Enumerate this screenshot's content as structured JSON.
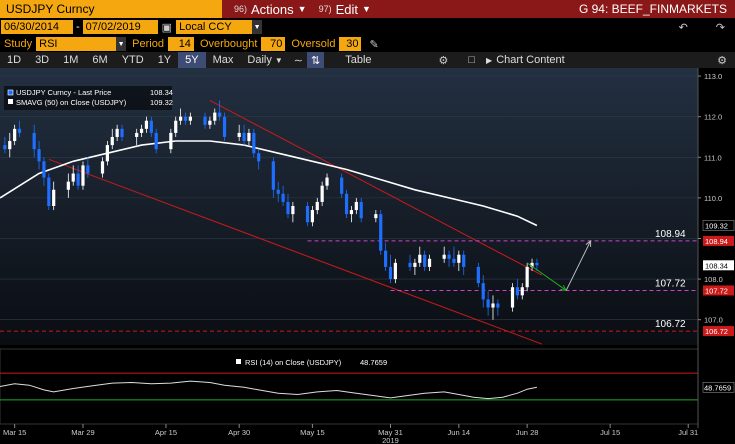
{
  "header": {
    "ticker": "USDJPY Curncy",
    "actions_num": "96)",
    "actions_label": "Actions",
    "edit_num": "97)",
    "edit_label": "Edit",
    "window_title": "G 94: BEEF_FINMARKETS"
  },
  "controls": {
    "start_date": "06/30/2014",
    "end_date": "07/02/2019",
    "currency": "Local CCY",
    "study_label": "Study",
    "study_value": "RSI",
    "period_label": "Period",
    "period_value": "14",
    "overbought_label": "Overbought",
    "overbought_value": "70",
    "oversold_label": "Oversold",
    "oversold_value": "30"
  },
  "toolbar": {
    "ranges": [
      "1D",
      "3D",
      "1M",
      "6M",
      "YTD",
      "1Y",
      "5Y",
      "Max"
    ],
    "active_range": "5Y",
    "interval": "Daily",
    "table_label": "Table",
    "chart_content_label": "Chart Content"
  },
  "colors": {
    "up_candle": "#ffffff",
    "down_candle": "#1e6fff",
    "sma_line": "#ffffff",
    "channel": "#cc1a1a",
    "level_line": "#cc44cc",
    "last_price_tag": "#ffffff",
    "level_tag": "#cc1a1a",
    "arrow_green": "#22aa22",
    "arrow_grey": "#bbbbbb",
    "rsi_line": "#dddddd",
    "rsi_overbought": "#cc1a1a",
    "rsi_oversold": "#22aa22"
  },
  "chart_data": {
    "type": "candlestick",
    "legend": [
      {
        "name": "USDJPY Curncy - Last Price",
        "value": "108.34",
        "color": "#1e6fff"
      },
      {
        "name": "SMAVG (50)  on Close (USDJPY)",
        "value": "109.32",
        "color": "#ffffff"
      }
    ],
    "ylim": [
      106.5,
      113.1
    ],
    "y_ticks": [
      107.0,
      108.0,
      109.0,
      110.0,
      111.0,
      112.0,
      113.0
    ],
    "x_tick_labels": [
      "Mar 15",
      "Mar 29",
      "Apr 15",
      "Apr 30",
      "May 15",
      "May 31",
      "Jun 14",
      "Jun 28",
      "Jul 15",
      "Jul 31"
    ],
    "x_tick_days": [
      0,
      14,
      31,
      46,
      61,
      77,
      91,
      105,
      122,
      138
    ],
    "x_sub_label": "2019",
    "candles": [
      [
        -2,
        111.3,
        111.5,
        111.1,
        111.2
      ],
      [
        -1,
        111.2,
        111.6,
        111.0,
        111.4
      ],
      [
        0,
        111.4,
        111.8,
        111.3,
        111.7
      ],
      [
        1,
        111.7,
        111.9,
        111.5,
        111.6
      ],
      [
        4,
        111.6,
        111.8,
        111.0,
        111.2
      ],
      [
        5,
        111.2,
        111.4,
        110.7,
        110.9
      ],
      [
        6,
        110.9,
        111.0,
        110.3,
        110.5
      ],
      [
        7,
        110.5,
        110.6,
        109.7,
        109.8
      ],
      [
        8,
        109.8,
        110.4,
        109.7,
        110.2
      ],
      [
        11,
        110.2,
        110.6,
        110.0,
        110.4
      ],
      [
        12,
        110.4,
        110.8,
        110.3,
        110.6
      ],
      [
        13,
        110.6,
        110.8,
        110.2,
        110.3
      ],
      [
        14,
        110.3,
        110.9,
        110.2,
        110.8
      ],
      [
        15,
        110.8,
        111.0,
        110.5,
        110.6
      ],
      [
        18,
        110.6,
        111.0,
        110.5,
        110.9
      ],
      [
        19,
        110.9,
        111.4,
        110.8,
        111.3
      ],
      [
        20,
        111.3,
        111.7,
        111.2,
        111.5
      ],
      [
        21,
        111.5,
        111.8,
        111.4,
        111.7
      ],
      [
        22,
        111.7,
        111.8,
        111.4,
        111.5
      ],
      [
        25,
        111.5,
        111.7,
        111.3,
        111.6
      ],
      [
        26,
        111.6,
        111.8,
        111.5,
        111.7
      ],
      [
        27,
        111.7,
        112.0,
        111.6,
        111.9
      ],
      [
        28,
        111.9,
        112.0,
        111.5,
        111.6
      ],
      [
        29,
        111.6,
        111.7,
        111.1,
        111.2
      ],
      [
        32,
        111.2,
        111.7,
        111.1,
        111.6
      ],
      [
        33,
        111.6,
        112.0,
        111.5,
        111.9
      ],
      [
        34,
        111.9,
        112.2,
        111.8,
        112.0
      ],
      [
        35,
        112.0,
        112.1,
        111.8,
        111.9
      ],
      [
        36,
        111.9,
        112.1,
        111.8,
        112.0
      ],
      [
        39,
        112.0,
        112.1,
        111.7,
        111.8
      ],
      [
        40,
        111.8,
        112.0,
        111.7,
        111.9
      ],
      [
        41,
        111.9,
        112.2,
        111.8,
        112.1
      ],
      [
        42,
        112.1,
        112.4,
        111.9,
        112.0
      ],
      [
        43,
        112.0,
        112.1,
        111.4,
        111.5
      ],
      [
        46,
        111.5,
        111.8,
        111.4,
        111.6
      ],
      [
        47,
        111.6,
        111.8,
        111.3,
        111.4
      ],
      [
        48,
        111.4,
        111.7,
        111.3,
        111.6
      ],
      [
        49,
        111.6,
        111.7,
        111.0,
        111.1
      ],
      [
        50,
        111.1,
        111.2,
        110.7,
        110.9
      ],
      [
        53,
        110.9,
        111.0,
        110.0,
        110.2
      ],
      [
        54,
        110.2,
        110.4,
        109.9,
        110.1
      ],
      [
        55,
        110.1,
        110.3,
        109.8,
        109.9
      ],
      [
        56,
        109.9,
        110.1,
        109.5,
        109.6
      ],
      [
        57,
        109.6,
        109.9,
        109.4,
        109.8
      ],
      [
        60,
        109.8,
        109.9,
        109.3,
        109.4
      ],
      [
        61,
        109.4,
        109.8,
        109.3,
        109.7
      ],
      [
        62,
        109.7,
        110.0,
        109.6,
        109.9
      ],
      [
        63,
        109.9,
        110.4,
        109.8,
        110.3
      ],
      [
        64,
        110.3,
        110.6,
        110.2,
        110.5
      ],
      [
        67,
        110.5,
        110.6,
        110.0,
        110.1
      ],
      [
        68,
        110.1,
        110.2,
        109.5,
        109.6
      ],
      [
        69,
        109.6,
        109.8,
        109.4,
        109.7
      ],
      [
        70,
        109.7,
        110.0,
        109.6,
        109.9
      ],
      [
        71,
        109.9,
        110.0,
        109.4,
        109.5
      ],
      [
        74,
        109.5,
        109.7,
        109.4,
        109.6
      ],
      [
        75,
        109.6,
        109.7,
        108.6,
        108.7
      ],
      [
        76,
        108.7,
        108.9,
        108.2,
        108.3
      ],
      [
        77,
        108.3,
        108.6,
        107.9,
        108.0
      ],
      [
        78,
        108.0,
        108.5,
        107.9,
        108.4
      ],
      [
        81,
        108.4,
        108.6,
        108.2,
        108.3
      ],
      [
        82,
        108.3,
        108.5,
        108.1,
        108.4
      ],
      [
        83,
        108.4,
        108.8,
        108.3,
        108.6
      ],
      [
        84,
        108.6,
        108.7,
        108.2,
        108.3
      ],
      [
        85,
        108.3,
        108.6,
        108.2,
        108.5
      ],
      [
        88,
        108.5,
        108.8,
        108.4,
        108.6
      ],
      [
        89,
        108.6,
        108.7,
        108.3,
        108.5
      ],
      [
        90,
        108.5,
        108.8,
        108.3,
        108.4
      ],
      [
        91,
        108.4,
        108.7,
        108.2,
        108.6
      ],
      [
        92,
        108.6,
        108.7,
        108.1,
        108.3
      ],
      [
        95,
        108.3,
        108.4,
        107.8,
        107.9
      ],
      [
        96,
        107.9,
        108.1,
        107.3,
        107.5
      ],
      [
        97,
        107.5,
        107.7,
        107.1,
        107.3
      ],
      [
        98,
        107.3,
        107.6,
        107.0,
        107.4
      ],
      [
        99,
        107.4,
        107.5,
        107.1,
        107.3
      ],
      [
        102,
        107.3,
        107.9,
        107.2,
        107.8
      ],
      [
        103,
        107.8,
        108.0,
        107.5,
        107.6
      ],
      [
        104,
        107.6,
        107.9,
        107.5,
        107.8
      ],
      [
        105,
        107.8,
        108.4,
        107.7,
        108.3
      ],
      [
        106,
        108.3,
        108.5,
        108.2,
        108.4
      ],
      [
        107,
        108.4,
        108.5,
        108.2,
        108.34
      ]
    ],
    "sma_50": [
      [
        -3,
        110.0
      ],
      [
        5,
        110.6
      ],
      [
        12,
        110.9
      ],
      [
        19,
        111.1
      ],
      [
        26,
        111.3
      ],
      [
        33,
        111.4
      ],
      [
        40,
        111.4
      ],
      [
        47,
        111.3
      ],
      [
        54,
        111.1
      ],
      [
        61,
        110.9
      ],
      [
        68,
        110.7
      ],
      [
        75,
        110.45
      ],
      [
        82,
        110.2
      ],
      [
        89,
        110.0
      ],
      [
        96,
        109.8
      ],
      [
        103,
        109.55
      ],
      [
        107,
        109.32
      ]
    ],
    "channel": {
      "upper": [
        [
          40,
          112.4
        ],
        [
          108,
          108.1
        ]
      ],
      "lower": [
        [
          7,
          110.95
        ],
        [
          108,
          106.4
        ]
      ]
    },
    "levels": [
      {
        "value": 108.94,
        "label": "108.94",
        "from_day": 60
      },
      {
        "value": 107.72,
        "label": "107.72",
        "from_day": 77
      },
      {
        "value": 106.72,
        "label": "106.72",
        "from_day": -3
      }
    ],
    "right_axis_tags": [
      {
        "value": 109.32,
        "label": "109.32",
        "style": "sma"
      },
      {
        "value": 108.94,
        "label": "108.94",
        "style": "level"
      },
      {
        "value": 108.34,
        "label": "108.34",
        "style": "last"
      },
      {
        "value": 107.72,
        "label": "107.72",
        "style": "level"
      },
      {
        "value": 106.72,
        "label": "106.72",
        "style": "level"
      }
    ],
    "arrows": [
      {
        "from": [
          105,
          108.4
        ],
        "to": [
          113,
          107.72
        ],
        "color": "green"
      },
      {
        "from": [
          113,
          107.72
        ],
        "to": [
          118,
          108.94
        ],
        "color": "grey"
      }
    ],
    "rsi": {
      "legend": "RSI (14)  on Close (USDJPY)",
      "value": "48.7659",
      "overbought": 70,
      "oversold": 30,
      "values": [
        [
          -3,
          50
        ],
        [
          0,
          54
        ],
        [
          3,
          52
        ],
        [
          6,
          45
        ],
        [
          8,
          42
        ],
        [
          12,
          47
        ],
        [
          16,
          51
        ],
        [
          20,
          55
        ],
        [
          24,
          56
        ],
        [
          28,
          54
        ],
        [
          32,
          55
        ],
        [
          36,
          58
        ],
        [
          40,
          56
        ],
        [
          43,
          52
        ],
        [
          47,
          49
        ],
        [
          50,
          45
        ],
        [
          54,
          40
        ],
        [
          58,
          38
        ],
        [
          62,
          42
        ],
        [
          66,
          44
        ],
        [
          70,
          40
        ],
        [
          74,
          36
        ],
        [
          77,
          33
        ],
        [
          80,
          36
        ],
        [
          84,
          40
        ],
        [
          88,
          42
        ],
        [
          91,
          38
        ],
        [
          94,
          34
        ],
        [
          97,
          32
        ],
        [
          100,
          34
        ],
        [
          103,
          40
        ],
        [
          105,
          46
        ],
        [
          107,
          48.77
        ]
      ]
    }
  }
}
